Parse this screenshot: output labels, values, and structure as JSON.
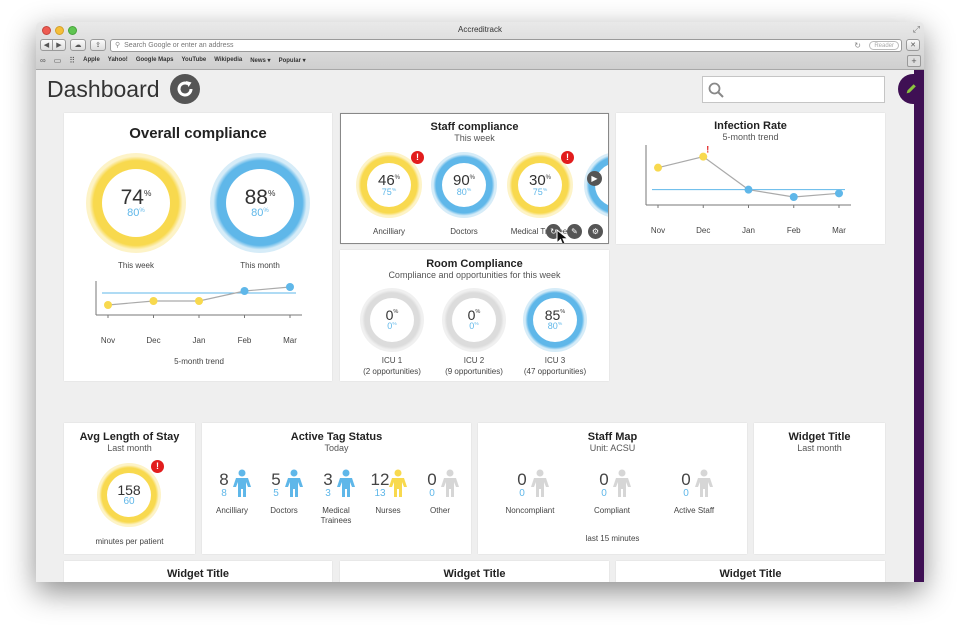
{
  "browser": {
    "window_title": "Accreditrack",
    "address_placeholder": "Search Google or enter an address",
    "reader_label": "Reader",
    "bookmarks": [
      "Apple",
      "Yahoo!",
      "Google Maps",
      "YouTube",
      "Wikipedia",
      "News ▾",
      "Popular ▾"
    ]
  },
  "header": {
    "title": "Dashboard",
    "search_value": ""
  },
  "colors": {
    "yellow": "#f8d94e",
    "blue": "#5fb7e9",
    "grey": "#dcdcdc",
    "accent": "#3f1054",
    "alert": "#e21d1d"
  },
  "overall": {
    "title": "Overall compliance",
    "week": {
      "value": "74",
      "target": "80",
      "label": "This week"
    },
    "month": {
      "value": "88",
      "target": "80",
      "label": "This month"
    },
    "trend_label": "5-month trend"
  },
  "staff": {
    "title": "Staff compliance",
    "subtitle": "This week",
    "items": [
      {
        "value": "46",
        "target": "75",
        "label": "Ancilliary"
      },
      {
        "value": "90",
        "target": "80",
        "label": "Doctors"
      },
      {
        "value": "30",
        "target": "75",
        "label": "Medical Trainees"
      }
    ]
  },
  "infection": {
    "title": "Infection Rate",
    "subtitle": "5-month trend"
  },
  "room": {
    "title": "Room Compliance",
    "subtitle": "Compliance and opportunities for this week",
    "items": [
      {
        "value": "0",
        "target": "0",
        "label": "ICU 1",
        "opps": "(2 opportunities)"
      },
      {
        "value": "0",
        "target": "0",
        "label": "ICU 2",
        "opps": "(9 opportunities)"
      },
      {
        "value": "85",
        "target": "80",
        "label": "ICU 3",
        "opps": "(47 opportunities)"
      }
    ]
  },
  "avg_stay": {
    "title": "Avg Length of Stay",
    "subtitle": "Last month",
    "value": "158",
    "target": "60",
    "unit": "minutes per patient"
  },
  "tags": {
    "title": "Active Tag Status",
    "subtitle": "Today",
    "items": [
      {
        "n": "8",
        "t": "8",
        "label": "Ancilliary"
      },
      {
        "n": "5",
        "t": "5",
        "label": "Doctors"
      },
      {
        "n": "3",
        "t": "3",
        "label": "Medical Trainees"
      },
      {
        "n": "12",
        "t": "13",
        "label": "Nurses"
      },
      {
        "n": "0",
        "t": "0",
        "label": "Other"
      }
    ]
  },
  "staffmap": {
    "title": "Staff Map",
    "subtitle": "Unit: ACSU",
    "items": [
      {
        "n": "0",
        "t": "0",
        "label": "Noncompliant"
      },
      {
        "n": "0",
        "t": "0",
        "label": "Compliant"
      },
      {
        "n": "0",
        "t": "0",
        "label": "Active Staff"
      }
    ],
    "footer": "last 15 minutes"
  },
  "widget": {
    "title": "Widget Title",
    "subtitle": "Last month"
  },
  "chart_data": [
    {
      "type": "line",
      "x": [
        "Nov",
        "Dec",
        "Jan",
        "Feb",
        "Mar"
      ],
      "values": [
        74,
        76,
        76,
        81,
        83
      ],
      "target": 80,
      "point_colors": [
        "yellow",
        "yellow",
        "yellow",
        "blue",
        "blue"
      ],
      "xlabel": "5-month trend"
    },
    {
      "type": "line",
      "x": [
        "Nov",
        "Dec",
        "Jan",
        "Feb",
        "Mar"
      ],
      "values": [
        4,
        5.5,
        1,
        0,
        0.5
      ],
      "target": 1,
      "point_colors": [
        "yellow",
        "yellow",
        "blue",
        "blue",
        "blue"
      ],
      "title": "Infection Rate"
    }
  ]
}
